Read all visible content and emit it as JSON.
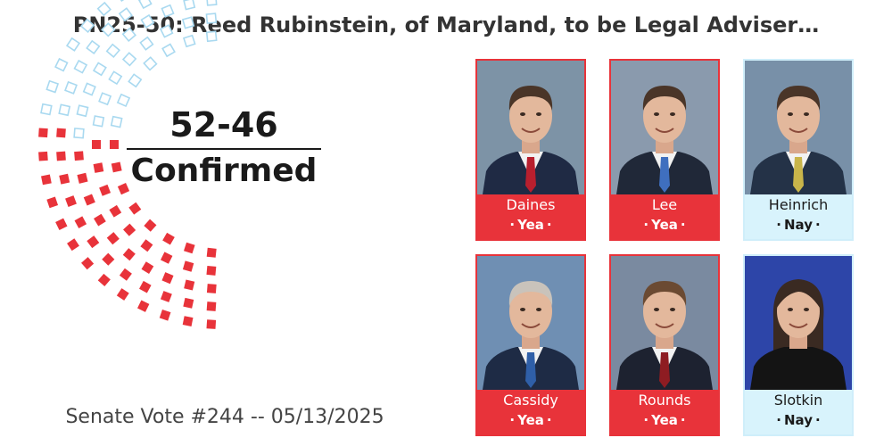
{
  "title": "PN25-50: Reed Rubinstein, of Maryland, to be Legal Adviser…",
  "tally": {
    "score": "52-46",
    "result": "Confirmed"
  },
  "footer": "Senate Vote #244 -- 05/13/2025",
  "seats": {
    "yea": 52,
    "nay": 46,
    "rows": 5
  },
  "colors": {
    "yea": "#e8333a",
    "nay_outline": "#a9d9f0",
    "nay_card": "#d8f3fc"
  },
  "senators": [
    {
      "name": "Daines",
      "vote": "Yea",
      "photo_bg": "#7d93a6",
      "suit": "#1f2a44",
      "tie": "#b81f2e"
    },
    {
      "name": "Lee",
      "vote": "Yea",
      "photo_bg": "#8a9aad",
      "suit": "#202838",
      "tie": "#3f6fbf"
    },
    {
      "name": "Heinrich",
      "vote": "Nay",
      "photo_bg": "#7890a8",
      "suit": "#243247",
      "tie": "#c9b54a"
    },
    {
      "name": "Cassidy",
      "vote": "Yea",
      "photo_bg": "#6f8fb3",
      "suit": "#1e2b45",
      "tie": "#2f5fa8"
    },
    {
      "name": "Rounds",
      "vote": "Yea",
      "photo_bg": "#7a8aa0",
      "suit": "#1d2230",
      "tie": "#8e1c22"
    },
    {
      "name": "Slotkin",
      "vote": "Nay",
      "photo_bg": "#2d45a8",
      "suit": "#141414",
      "tie": "#141414"
    }
  ]
}
